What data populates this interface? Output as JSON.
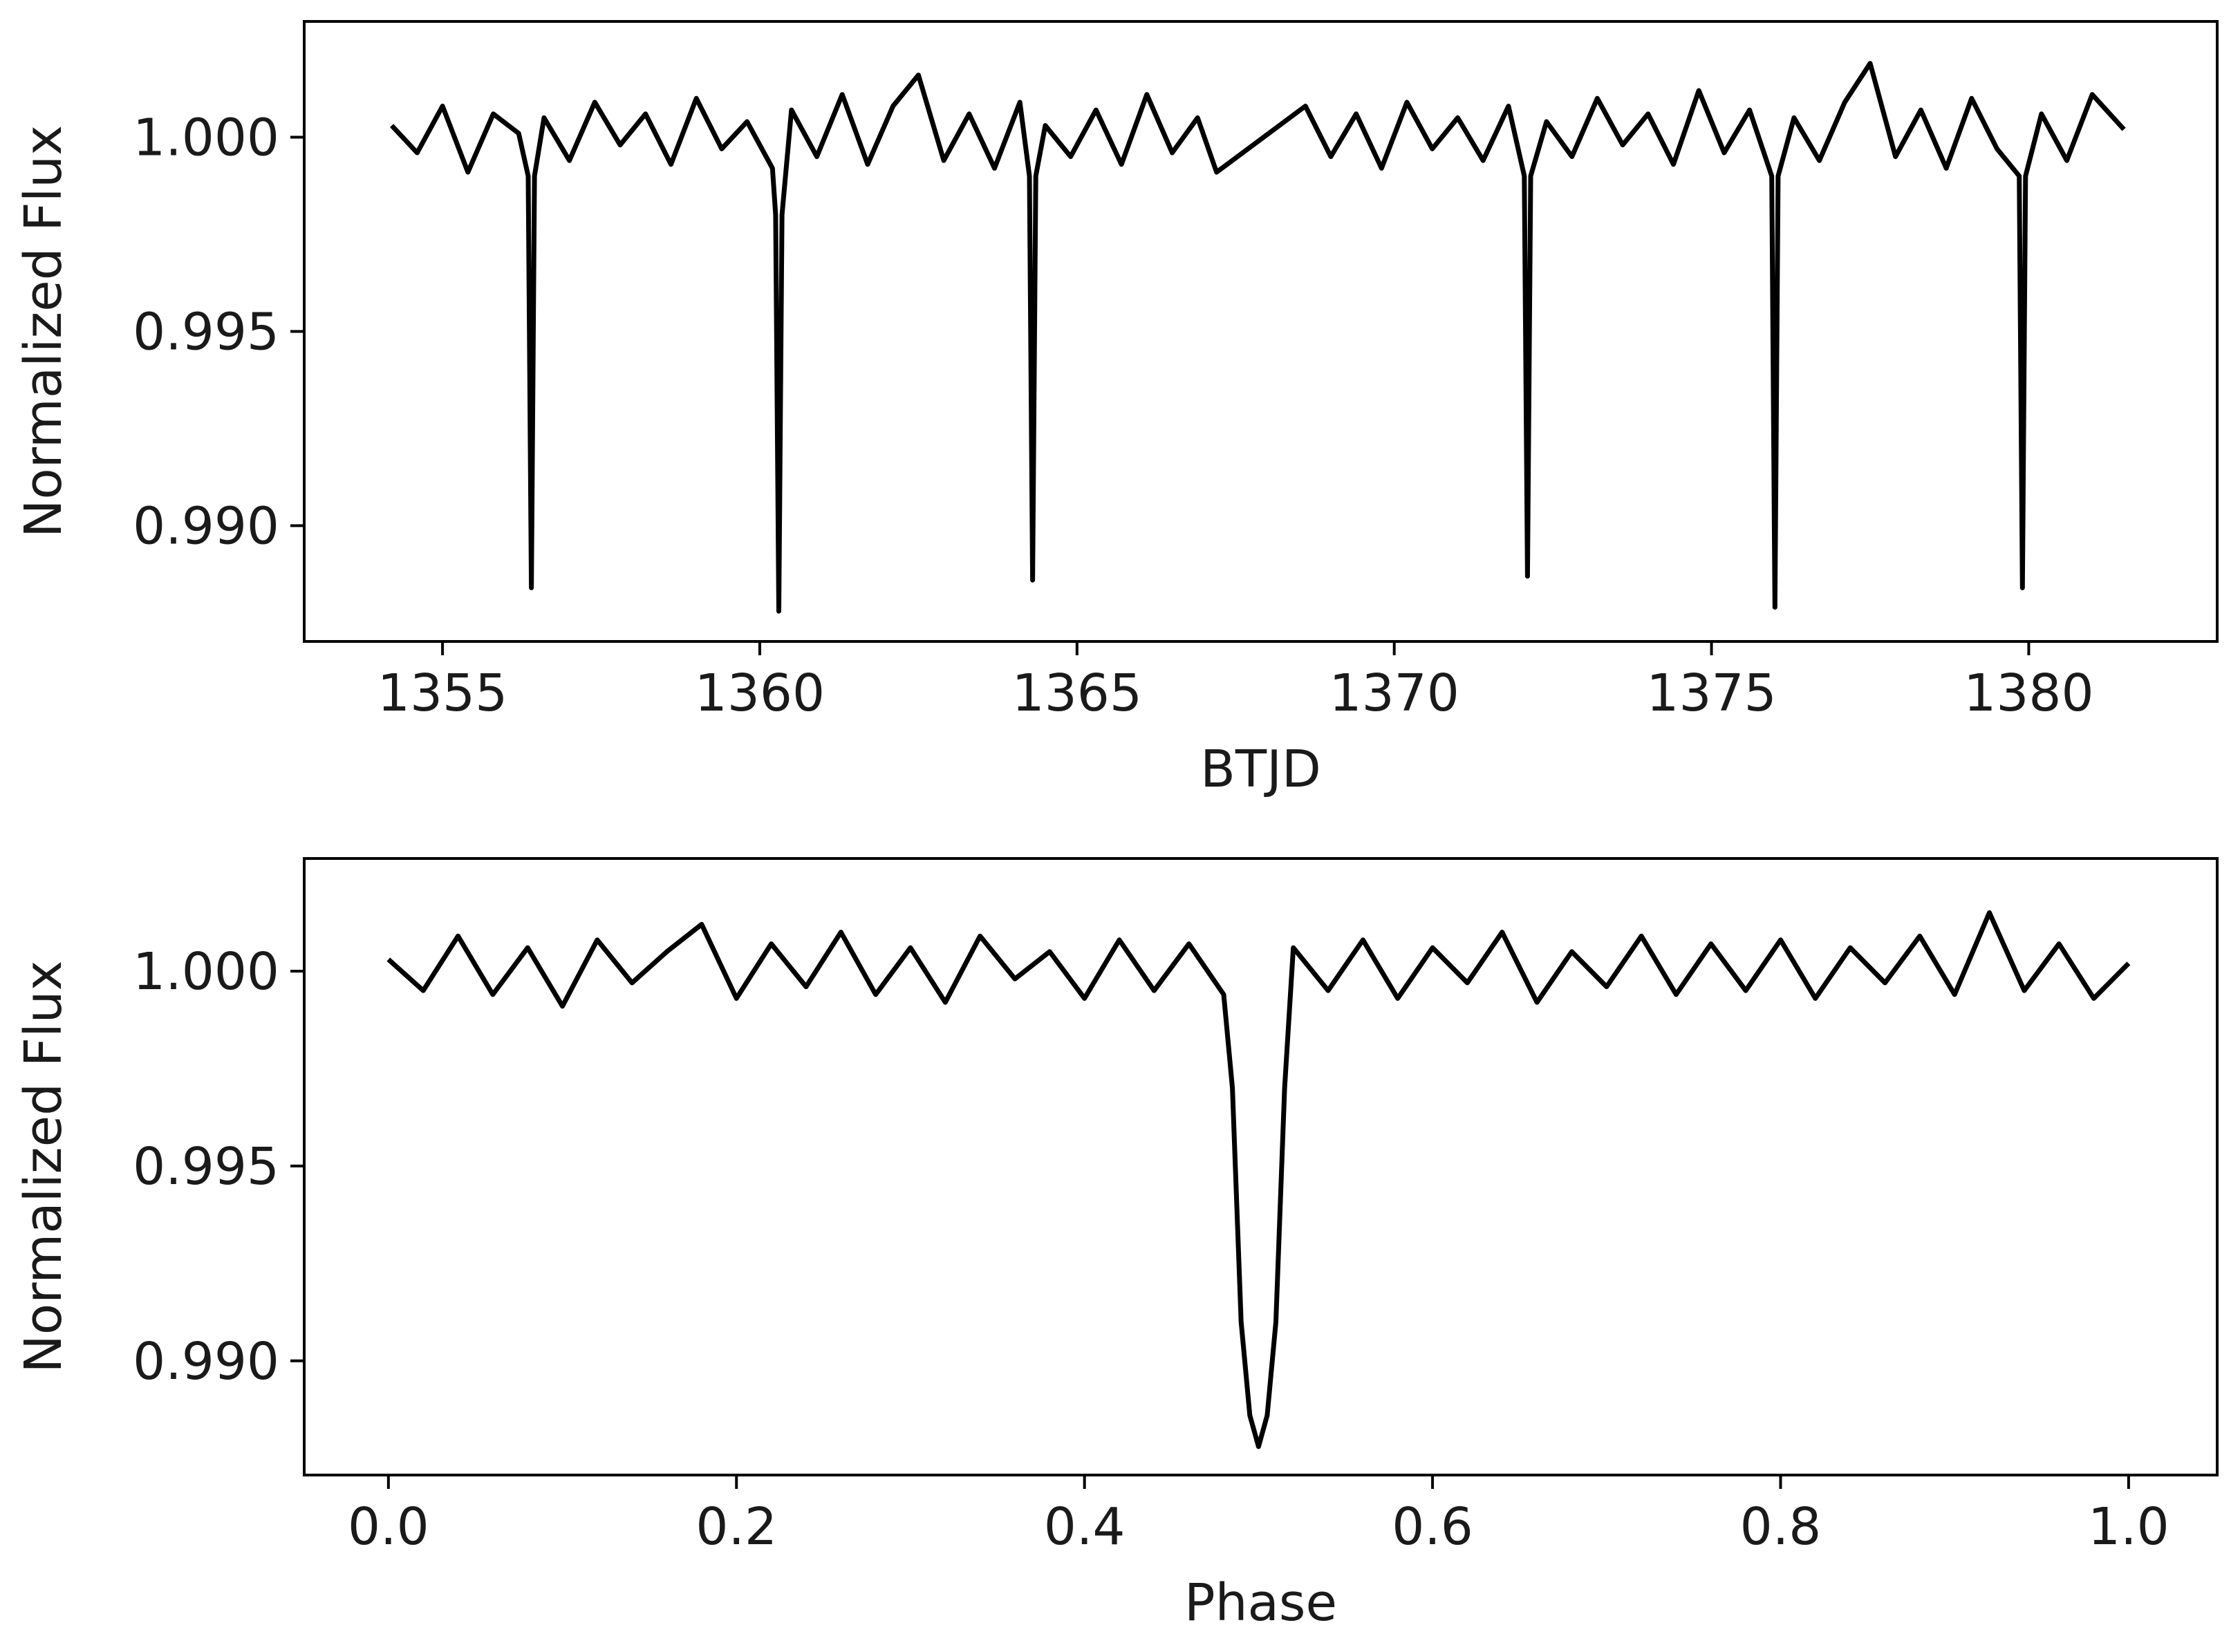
{
  "chart_data": [
    {
      "type": "line",
      "x_label": "BTJD",
      "y_label": "Normalized Flux",
      "color": "#000000",
      "xlim": [
        1352.82,
        1382.97
      ],
      "ylim": [
        0.98702,
        1.00298
      ],
      "xticks": [
        1355,
        1360,
        1365,
        1370,
        1375,
        1380
      ],
      "yticks": [
        {
          "value": 1.0,
          "label": "1.000"
        },
        0.995,
        {
          "value": 0.99,
          "label": "0.990"
        }
      ],
      "x": [
        1354.2,
        1354.6,
        1355.0,
        1355.4,
        1355.8,
        1356.2,
        1356.35,
        1356.4,
        1356.45,
        1356.6,
        1357.0,
        1357.4,
        1357.8,
        1358.2,
        1358.6,
        1359.0,
        1359.4,
        1359.8,
        1360.2,
        1360.25,
        1360.3,
        1360.35,
        1360.5,
        1360.9,
        1361.3,
        1361.7,
        1362.1,
        1362.5,
        1362.9,
        1363.3,
        1363.7,
        1364.1,
        1364.25,
        1364.3,
        1364.35,
        1364.5,
        1364.9,
        1365.3,
        1365.7,
        1366.1,
        1366.5,
        1366.9,
        1367.2,
        1368.6,
        1369.0,
        1369.4,
        1369.8,
        1370.2,
        1370.6,
        1371.0,
        1371.4,
        1371.8,
        1372.05,
        1372.1,
        1372.15,
        1372.4,
        1372.8,
        1373.2,
        1373.6,
        1374.0,
        1374.4,
        1374.8,
        1375.2,
        1375.6,
        1375.95,
        1376.0,
        1376.05,
        1376.3,
        1376.7,
        1377.1,
        1377.5,
        1377.9,
        1378.3,
        1378.7,
        1379.1,
        1379.5,
        1379.85,
        1379.9,
        1379.95,
        1380.2,
        1380.6,
        1381.0,
        1381.5
      ],
      "values": [
        1.0003,
        0.9996,
        1.0008,
        0.9991,
        1.0006,
        1.0001,
        0.999,
        0.9884,
        0.999,
        1.0005,
        0.9994,
        1.0009,
        0.9998,
        1.0006,
        0.9993,
        1.001,
        0.9997,
        1.0004,
        0.9992,
        0.998,
        0.9878,
        0.998,
        1.0007,
        0.9995,
        1.0011,
        0.9993,
        1.0008,
        1.0016,
        0.9994,
        1.0006,
        0.9992,
        1.0009,
        0.999,
        0.9886,
        0.999,
        1.0003,
        0.9995,
        1.0007,
        0.9993,
        1.0011,
        0.9996,
        1.0005,
        0.9991,
        1.0008,
        0.9995,
        1.0006,
        0.9992,
        1.0009,
        0.9997,
        1.0005,
        0.9994,
        1.0008,
        0.999,
        0.9887,
        0.999,
        1.0004,
        0.9995,
        1.001,
        0.9998,
        1.0006,
        0.9993,
        1.0012,
        0.9996,
        1.0007,
        0.999,
        0.9879,
        0.999,
        1.0005,
        0.9994,
        1.0009,
        1.0019,
        0.9995,
        1.0007,
        0.9992,
        1.001,
        0.9997,
        0.999,
        0.9884,
        0.999,
        1.0006,
        0.9994,
        1.0011,
        1.0002
      ]
    },
    {
      "type": "line",
      "x_label": "Phase",
      "y_label": "Normalized Flux",
      "color": "#000000",
      "xlim": [
        -0.0484,
        1.0509
      ],
      "ylim": [
        0.98707,
        1.00289
      ],
      "xticks": [
        {
          "value": 0,
          "label": "0.0"
        },
        0.2,
        0.4,
        0.6,
        0.8,
        {
          "value": 1.0,
          "label": "1.0"
        }
      ],
      "yticks": [
        {
          "value": 1.0,
          "label": "1.000"
        },
        0.995,
        {
          "value": 0.99,
          "label": "0.990"
        }
      ],
      "x": [
        0,
        0.02,
        0.04,
        0.06,
        0.08,
        0.1,
        0.12,
        0.14,
        0.16,
        0.18,
        0.2,
        0.22,
        0.24,
        0.26,
        0.28,
        0.3,
        0.32,
        0.34,
        0.36,
        0.38,
        0.4,
        0.42,
        0.44,
        0.46,
        0.48,
        0.485,
        0.49,
        0.495,
        0.5,
        0.505,
        0.51,
        0.515,
        0.52,
        0.54,
        0.56,
        0.58,
        0.6,
        0.62,
        0.64,
        0.66,
        0.68,
        0.7,
        0.72,
        0.74,
        0.76,
        0.78,
        0.8,
        0.82,
        0.84,
        0.86,
        0.88,
        0.9,
        0.92,
        0.94,
        0.96,
        0.98,
        1.0
      ],
      "values": [
        1.0003,
        0.9995,
        1.0009,
        0.9994,
        1.0006,
        0.9991,
        1.0008,
        0.9997,
        1.0005,
        1.0012,
        0.9993,
        1.0007,
        0.9996,
        1.001,
        0.9994,
        1.0006,
        0.9992,
        1.0009,
        0.9998,
        1.0005,
        0.9993,
        1.0008,
        0.9995,
        1.0007,
        0.9994,
        0.997,
        0.991,
        0.9886,
        0.9878,
        0.9886,
        0.991,
        0.997,
        1.0006,
        0.9995,
        1.0008,
        0.9993,
        1.0006,
        0.9997,
        1.001,
        0.9992,
        1.0005,
        0.9996,
        1.0009,
        0.9994,
        1.0007,
        0.9995,
        1.0008,
        0.9993,
        1.0006,
        0.9997,
        1.0009,
        0.9994,
        1.0015,
        0.9995,
        1.0007,
        0.9993,
        1.0002
      ]
    }
  ]
}
